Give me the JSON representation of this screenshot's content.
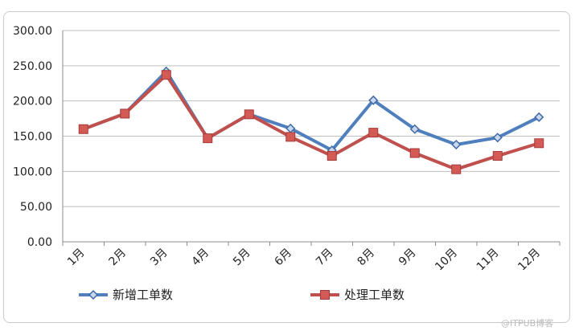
{
  "chart_data": {
    "type": "line",
    "title": "",
    "xlabel": "",
    "ylabel": "",
    "categories": [
      "1月",
      "2月",
      "3月",
      "4月",
      "5月",
      "6月",
      "7月",
      "8月",
      "9月",
      "10月",
      "11月",
      "12月"
    ],
    "y_ticks": [
      "0.00",
      "50.00",
      "100.00",
      "150.00",
      "200.00",
      "250.00",
      "300.00"
    ],
    "ylim": [
      0,
      300
    ],
    "grid": "horizontal",
    "legend_position": "bottom",
    "series": [
      {
        "name": "新增工单数",
        "color": "#4f7fbd",
        "marker": "diamond",
        "values": [
          160,
          182,
          242,
          147,
          181,
          161,
          130,
          201,
          160,
          138,
          148,
          177
        ]
      },
      {
        "name": "处理工单数",
        "color": "#c0504d",
        "marker": "square",
        "values": [
          160,
          182,
          237,
          147,
          181,
          149,
          122,
          155,
          126,
          103,
          122,
          140
        ]
      }
    ]
  },
  "watermark": "@ITPUB博客"
}
